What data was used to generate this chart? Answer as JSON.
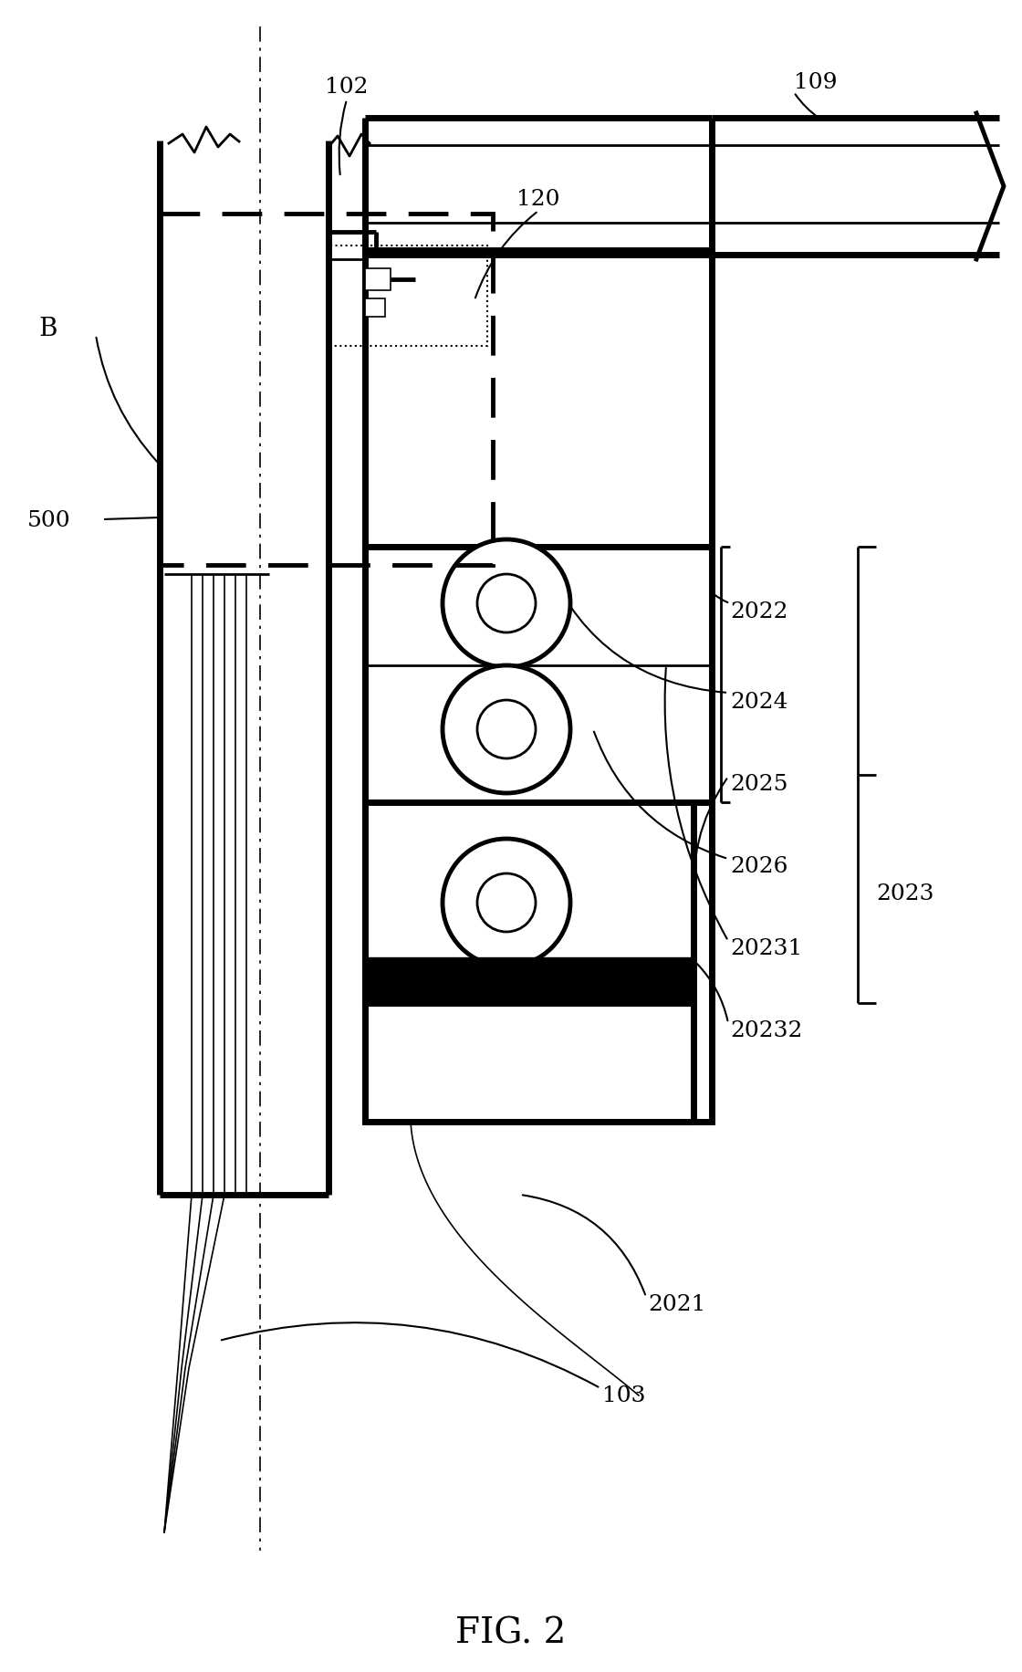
{
  "title": "FIG. 2",
  "bg": "#ffffff",
  "lw_thin": 1.2,
  "lw_med": 2.0,
  "lw_thick": 3.5,
  "lw_vthick": 5.0,
  "fs_label": 18,
  "fs_title": 28
}
